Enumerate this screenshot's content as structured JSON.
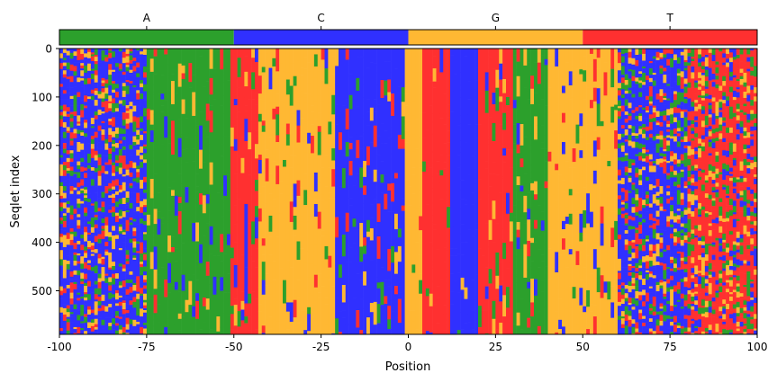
{
  "chart_data": [
    {
      "type": "heatmap",
      "title": "",
      "xlabel": "Position",
      "ylabel": "Seqlet index",
      "xlim": [
        -100,
        100
      ],
      "ylim": [
        590,
        0
      ],
      "x_ticks": [
        -100,
        -75,
        -50,
        -25,
        0,
        25,
        50,
        75,
        100
      ],
      "x_tick_labels": [
        "-100",
        "-75",
        "-50",
        "-25",
        "0",
        "25",
        "50",
        "75",
        "100"
      ],
      "y_ticks": [
        0,
        100,
        200,
        300,
        400,
        500
      ],
      "y_tick_labels": [
        "0",
        "100",
        "200",
        "300",
        "400",
        "500"
      ],
      "n_positions": 200,
      "n_seqlets": 590,
      "categories": [
        "A",
        "C",
        "G",
        "T"
      ],
      "colors": {
        "A": "#2ca02c",
        "C": "#3030ff",
        "G": "#ffb833",
        "T": "#ff3030"
      },
      "columns": [
        {
          "from": 1,
          "to": 14,
          "pattern": "mixed",
          "bias": "C"
        },
        {
          "from": 15,
          "to": 25,
          "pattern": "mixed",
          "bias": "C"
        },
        {
          "from": 26,
          "to": 49,
          "pattern": "striped",
          "bias": "A"
        },
        {
          "from": 50,
          "to": 57,
          "pattern": "striped",
          "bias": "T"
        },
        {
          "from": 58,
          "to": 79,
          "pattern": "striped",
          "bias": "G"
        },
        {
          "from": 80,
          "to": 99,
          "pattern": "striped",
          "bias": "C"
        },
        {
          "from": 100,
          "to": 104,
          "pattern": "conserved",
          "bias": "G"
        },
        {
          "from": 105,
          "to": 112,
          "pattern": "conserved",
          "bias": "T"
        },
        {
          "from": 113,
          "to": 120,
          "pattern": "conserved",
          "bias": "C"
        },
        {
          "from": 121,
          "to": 130,
          "pattern": "striped",
          "bias": "T"
        },
        {
          "from": 131,
          "to": 140,
          "pattern": "striped",
          "bias": "A"
        },
        {
          "from": 141,
          "to": 160,
          "pattern": "striped",
          "bias": "G"
        },
        {
          "from": 161,
          "to": 180,
          "pattern": "mixed",
          "bias": "C"
        },
        {
          "from": 181,
          "to": 200,
          "pattern": "mixed",
          "bias": "T"
        }
      ]
    },
    {
      "type": "bar",
      "title": "",
      "xlabel": "",
      "ylabel": "",
      "categories": [
        "A",
        "C",
        "G",
        "T"
      ],
      "colors": [
        "#2ca02c",
        "#3030ff",
        "#ffb833",
        "#ff3030"
      ]
    }
  ]
}
